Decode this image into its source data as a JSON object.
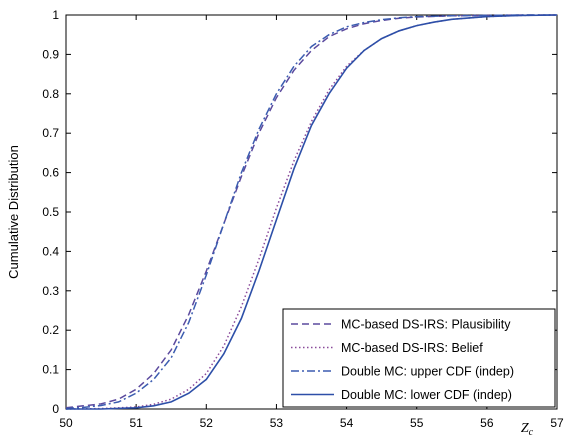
{
  "chart_data": {
    "type": "line",
    "title": "",
    "xlabel": "Z_c",
    "ylabel": "Cumulative Distribution",
    "xlim": [
      50,
      57
    ],
    "ylim": [
      0,
      1
    ],
    "xticks": [
      "50",
      "51",
      "52",
      "53",
      "54",
      "55",
      "56",
      "57"
    ],
    "yticks": [
      "0",
      "0.1",
      "0.2",
      "0.3",
      "0.4",
      "0.5",
      "0.6",
      "0.7",
      "0.8",
      "0.9",
      "1"
    ],
    "grid": false,
    "legend_position": "bottom-right",
    "series": [
      {
        "name": "MC-based DS-IRS: Plausibility",
        "color": "#5b4a9e",
        "dash": "dashed",
        "x": [
          50.0,
          50.25,
          50.5,
          50.75,
          51.0,
          51.25,
          51.5,
          51.75,
          52.0,
          52.25,
          52.5,
          52.75,
          53.0,
          53.25,
          53.5,
          53.75,
          54.0,
          54.25,
          54.5,
          54.75,
          55.0,
          55.5,
          56.0,
          56.5,
          57.0
        ],
        "y": [
          0.003,
          0.008,
          0.013,
          0.025,
          0.05,
          0.09,
          0.15,
          0.24,
          0.35,
          0.47,
          0.59,
          0.7,
          0.79,
          0.86,
          0.91,
          0.945,
          0.965,
          0.978,
          0.986,
          0.992,
          0.995,
          0.998,
          0.999,
          1.0,
          1.0
        ]
      },
      {
        "name": "MC-based DS-IRS: Belief",
        "color": "#8a4a9a",
        "dash": "dotted",
        "x": [
          50.0,
          50.5,
          51.0,
          51.25,
          51.5,
          51.75,
          52.0,
          52.25,
          52.5,
          52.75,
          53.0,
          53.25,
          53.5,
          53.75,
          54.0,
          54.25,
          54.5,
          54.75,
          55.0,
          55.25,
          55.5,
          56.0,
          56.5,
          57.0
        ],
        "y": [
          0.0,
          0.001,
          0.005,
          0.012,
          0.025,
          0.05,
          0.09,
          0.16,
          0.26,
          0.38,
          0.51,
          0.63,
          0.73,
          0.81,
          0.87,
          0.91,
          0.94,
          0.96,
          0.973,
          0.982,
          0.989,
          0.996,
          0.999,
          1.0
        ]
      },
      {
        "name": "Double MC: upper CDF (indep)",
        "color": "#3b5cb0",
        "dash": "dashdot",
        "x": [
          50.0,
          50.25,
          50.5,
          50.75,
          51.0,
          51.25,
          51.5,
          51.75,
          52.0,
          52.25,
          52.5,
          52.75,
          53.0,
          53.25,
          53.5,
          53.75,
          54.0,
          54.25,
          54.5,
          54.75,
          55.0,
          55.5,
          56.0,
          56.5,
          57.0
        ],
        "y": [
          0.001,
          0.004,
          0.009,
          0.018,
          0.04,
          0.075,
          0.13,
          0.22,
          0.34,
          0.47,
          0.6,
          0.71,
          0.8,
          0.87,
          0.92,
          0.95,
          0.97,
          0.981,
          0.988,
          0.993,
          0.996,
          0.998,
          0.999,
          1.0,
          1.0
        ]
      },
      {
        "name": "Double MC: lower CDF (indep)",
        "color": "#2d4fa8",
        "dash": "solid",
        "x": [
          50.0,
          50.5,
          51.0,
          51.25,
          51.5,
          51.75,
          52.0,
          52.25,
          52.5,
          52.75,
          53.0,
          53.25,
          53.5,
          53.75,
          54.0,
          54.25,
          54.5,
          54.75,
          55.0,
          55.25,
          55.5,
          56.0,
          56.5,
          57.0
        ],
        "y": [
          0.0,
          0.0,
          0.003,
          0.008,
          0.018,
          0.04,
          0.075,
          0.14,
          0.23,
          0.35,
          0.48,
          0.61,
          0.72,
          0.8,
          0.865,
          0.91,
          0.94,
          0.96,
          0.973,
          0.982,
          0.989,
          0.996,
          0.999,
          1.0
        ]
      }
    ]
  }
}
